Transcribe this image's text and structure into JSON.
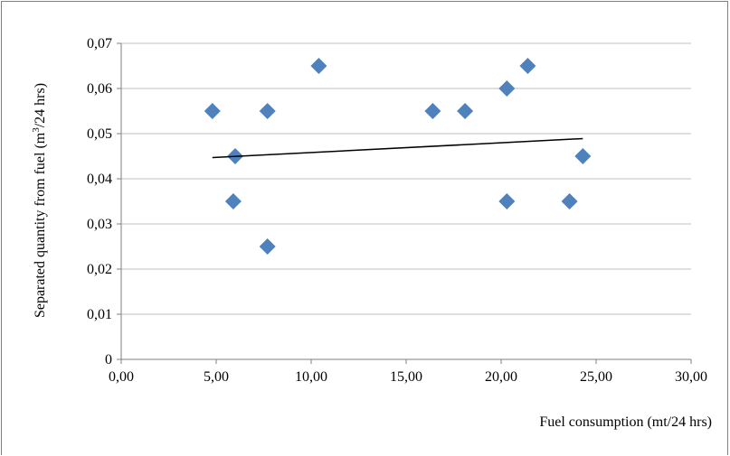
{
  "chart_data": {
    "type": "scatter",
    "xlabel": "Fuel consumption (mt/24 hrs)",
    "ylabel": {
      "before": "Separated quantity from fuel (m",
      "sup": "3",
      "after": "/24 hrs)"
    },
    "xlim": [
      0,
      30
    ],
    "ylim": [
      0,
      0.07
    ],
    "x_ticks": [
      "0,00",
      "5,00",
      "10,00",
      "15,00",
      "20,00",
      "25,00",
      "30,00"
    ],
    "y_ticks": [
      "0",
      "0,01",
      "0,02",
      "0,03",
      "0,04",
      "0,05",
      "0,06",
      "0,07"
    ],
    "grid": "horizontal",
    "marker": "diamond",
    "marker_color": "#4f81bd",
    "trendline": {
      "type": "linear",
      "color": "#000000",
      "x": [
        4.8,
        24.3
      ],
      "y": [
        0.0447,
        0.0489
      ]
    },
    "series": [
      {
        "points": [
          {
            "x": 4.8,
            "y": 0.055
          },
          {
            "x": 5.9,
            "y": 0.035
          },
          {
            "x": 6.0,
            "y": 0.045
          },
          {
            "x": 7.7,
            "y": 0.055
          },
          {
            "x": 7.7,
            "y": 0.025
          },
          {
            "x": 10.4,
            "y": 0.065
          },
          {
            "x": 16.4,
            "y": 0.055
          },
          {
            "x": 18.1,
            "y": 0.055
          },
          {
            "x": 20.3,
            "y": 0.06
          },
          {
            "x": 20.3,
            "y": 0.035
          },
          {
            "x": 21.4,
            "y": 0.065
          },
          {
            "x": 23.6,
            "y": 0.035
          },
          {
            "x": 24.3,
            "y": 0.045
          }
        ]
      }
    ]
  }
}
